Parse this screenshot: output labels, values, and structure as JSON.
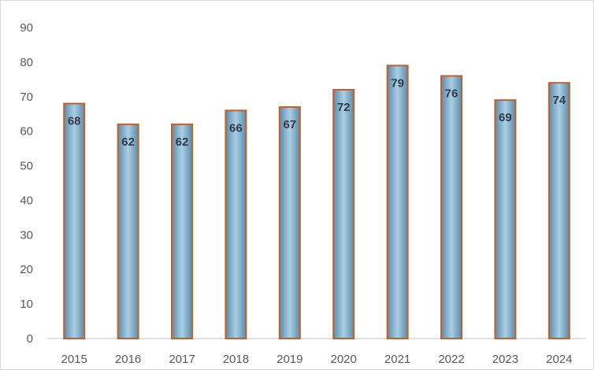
{
  "chart_data": {
    "type": "bar",
    "title": "",
    "xlabel": "",
    "ylabel": "",
    "categories": [
      "2015",
      "2016",
      "2017",
      "2018",
      "2019",
      "2020",
      "2021",
      "2022",
      "2023",
      "2024"
    ],
    "values": [
      68,
      62,
      62,
      66,
      67,
      72,
      79,
      76,
      69,
      74
    ],
    "data_labels": [
      "68",
      "62",
      "62",
      "66",
      "67",
      "72",
      "79",
      "76",
      "69",
      "74"
    ],
    "ylim": [
      0,
      90
    ],
    "y_ticks": [
      "0",
      "10",
      "20",
      "30",
      "40",
      "50",
      "60",
      "70",
      "80",
      "90"
    ],
    "grid": false,
    "legend": "none",
    "colors": {
      "bar_fill_edge": "#5f8aa6",
      "bar_fill_center": "#a9cfe6",
      "bar_border": "#c0622b",
      "axis_line": "#d9d9d9"
    }
  }
}
